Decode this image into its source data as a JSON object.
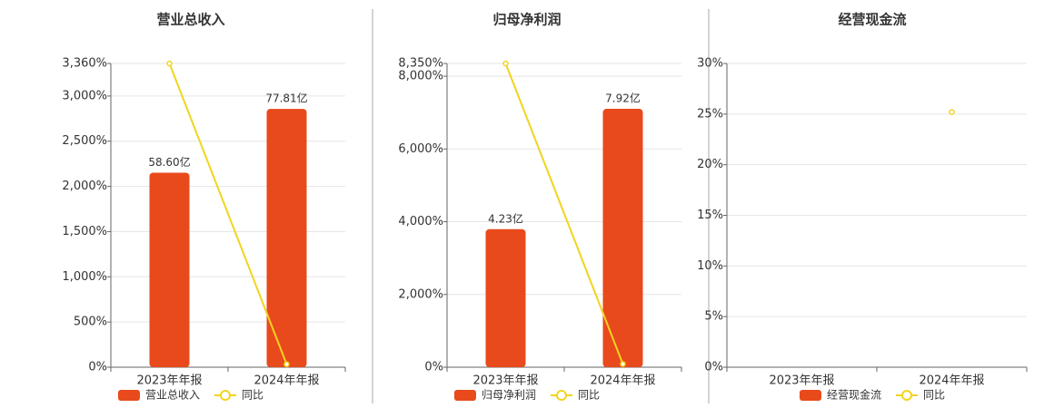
{
  "chart_data": [
    {
      "type": "bar",
      "title": "营业总收入",
      "categories": [
        "2023年年报",
        "2024年年报"
      ],
      "series": [
        {
          "name": "营业总收入",
          "color": "#e84a1c",
          "axis": "y2",
          "values": [
            58.6,
            77.81
          ],
          "value_labels": [
            "58.60亿",
            "77.81亿"
          ]
        },
        {
          "name": "同比",
          "type": "line",
          "color": "#f2d41f",
          "values": [
            3360,
            32.8
          ]
        }
      ],
      "ylim": [
        0,
        3360
      ],
      "yticks": [
        {
          "value": 0,
          "label": "0%"
        },
        {
          "value": 500,
          "label": "500%"
        },
        {
          "value": 1000,
          "label": "1,000%"
        },
        {
          "value": 1500,
          "label": "1,500%"
        },
        {
          "value": 2000,
          "label": "2,000%"
        },
        {
          "value": 2500,
          "label": "2,500%"
        },
        {
          "value": 3000,
          "label": "3,000%"
        },
        {
          "value": 3360,
          "label": "3,360%"
        }
      ],
      "y2lim": [
        0,
        91.5
      ],
      "grid": true
    },
    {
      "type": "bar",
      "title": "归母净利润",
      "categories": [
        "2023年年报",
        "2024年年报"
      ],
      "series": [
        {
          "name": "归母净利润",
          "color": "#e84a1c",
          "axis": "y2",
          "values": [
            4.23,
            7.92
          ],
          "value_labels": [
            "4.23亿",
            "7.92亿"
          ]
        },
        {
          "name": "同比",
          "type": "line",
          "color": "#f2d41f",
          "values": [
            8350,
            87.2
          ]
        }
      ],
      "ylim": [
        0,
        8350
      ],
      "yticks": [
        {
          "value": 0,
          "label": "0%"
        },
        {
          "value": 2000,
          "label": "2,000%"
        },
        {
          "value": 4000,
          "label": "4,000%"
        },
        {
          "value": 6000,
          "label": "6,000%"
        },
        {
          "value": 8000,
          "label": "8,000%"
        },
        {
          "value": 8350,
          "label": "8,350%"
        }
      ],
      "y2lim": [
        0,
        9.31
      ],
      "grid": true
    },
    {
      "type": "bar",
      "title": "经营现金流",
      "categories": [
        "2023年年报",
        "2024年年报"
      ],
      "series": [
        {
          "name": "经营现金流",
          "color": "#e84a1c",
          "axis": "y2",
          "values": [
            null,
            null
          ]
        },
        {
          "name": "同比",
          "type": "line",
          "color": "#f2d41f",
          "values": [
            null,
            25.2
          ]
        }
      ],
      "ylim": [
        0,
        30
      ],
      "yticks": [
        {
          "value": 0,
          "label": "0%"
        },
        {
          "value": 5,
          "label": "5%"
        },
        {
          "value": 10,
          "label": "10%"
        },
        {
          "value": 15,
          "label": "15%"
        },
        {
          "value": 20,
          "label": "20%"
        },
        {
          "value": 25,
          "label": "25%"
        },
        {
          "value": 30,
          "label": "30%"
        }
      ],
      "grid": true
    }
  ]
}
